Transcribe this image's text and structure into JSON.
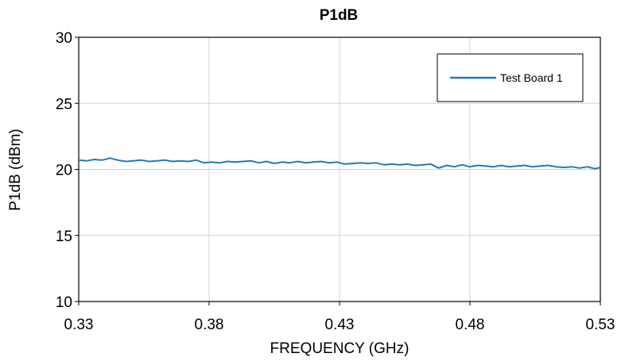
{
  "chart_data": {
    "type": "line",
    "title": "P1dB",
    "xlabel": "FREQUENCY (GHz)",
    "ylabel": "P1dB (dBm)",
    "xlim": [
      0.33,
      0.53
    ],
    "ylim": [
      10,
      30
    ],
    "xticks": [
      0.33,
      0.38,
      0.43,
      0.48,
      0.53
    ],
    "xtick_labels": [
      "0.33",
      "0.38",
      "0.43",
      "0.48",
      "0.53"
    ],
    "yticks": [
      10,
      15,
      20,
      25,
      30
    ],
    "ytick_labels": [
      "10",
      "15",
      "20",
      "25",
      "30"
    ],
    "grid": "vertical",
    "legend_position": "top-right",
    "series": [
      {
        "name": "Test Board 1",
        "color": "#2479b5",
        "x": [
          0.33,
          0.333,
          0.336,
          0.339,
          0.342,
          0.345,
          0.348,
          0.351,
          0.354,
          0.357,
          0.36,
          0.363,
          0.366,
          0.369,
          0.372,
          0.375,
          0.378,
          0.381,
          0.384,
          0.387,
          0.39,
          0.393,
          0.396,
          0.399,
          0.402,
          0.405,
          0.408,
          0.411,
          0.414,
          0.417,
          0.42,
          0.423,
          0.426,
          0.429,
          0.432,
          0.435,
          0.438,
          0.441,
          0.444,
          0.447,
          0.45,
          0.453,
          0.456,
          0.459,
          0.462,
          0.465,
          0.468,
          0.471,
          0.474,
          0.477,
          0.48,
          0.483,
          0.486,
          0.489,
          0.492,
          0.495,
          0.498,
          0.501,
          0.504,
          0.507,
          0.51,
          0.513,
          0.516,
          0.519,
          0.522,
          0.525,
          0.528,
          0.53
        ],
        "y": [
          20.7,
          20.65,
          20.75,
          20.7,
          20.85,
          20.7,
          20.6,
          20.65,
          20.7,
          20.6,
          20.65,
          20.7,
          20.6,
          20.65,
          20.6,
          20.7,
          20.5,
          20.55,
          20.5,
          20.6,
          20.55,
          20.6,
          20.65,
          20.5,
          20.6,
          20.45,
          20.55,
          20.5,
          20.6,
          20.5,
          20.55,
          20.6,
          20.5,
          20.55,
          20.4,
          20.45,
          20.5,
          20.45,
          20.5,
          20.35,
          20.4,
          20.35,
          20.4,
          20.3,
          20.35,
          20.4,
          20.1,
          20.3,
          20.2,
          20.35,
          20.2,
          20.3,
          20.25,
          20.2,
          20.3,
          20.2,
          20.25,
          20.3,
          20.2,
          20.25,
          20.3,
          20.2,
          20.15,
          20.2,
          20.1,
          20.2,
          20.05,
          20.15
        ]
      }
    ]
  }
}
